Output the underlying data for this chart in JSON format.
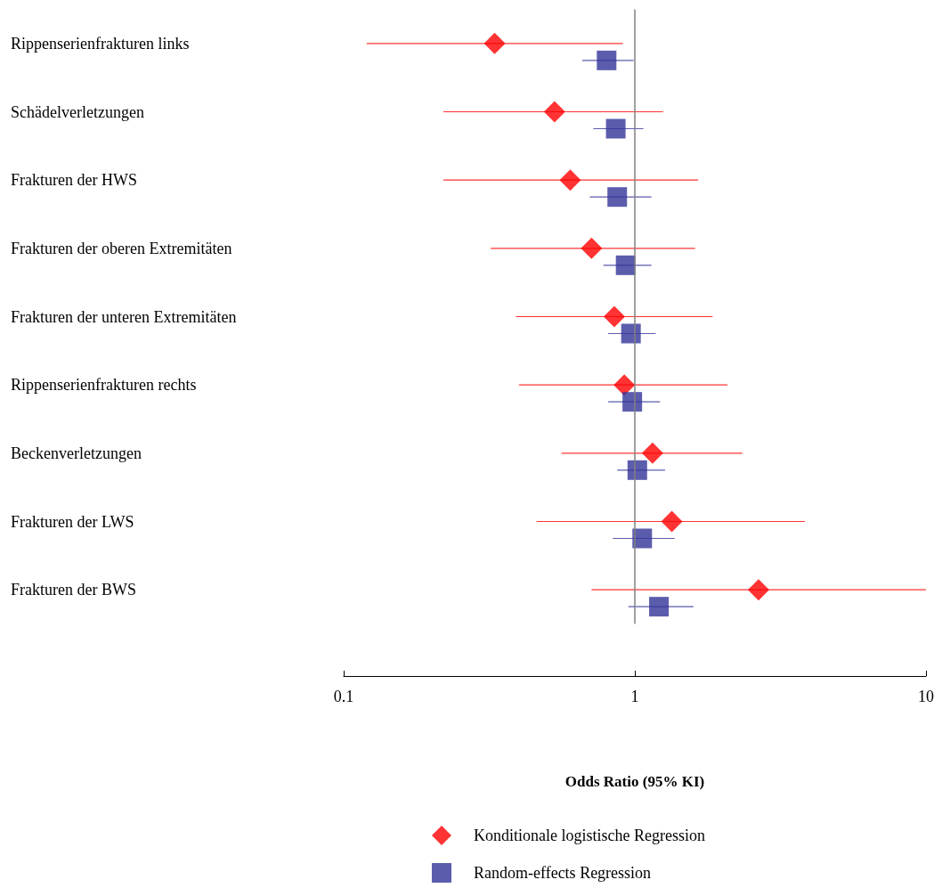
{
  "chart_data": {
    "type": "scatter",
    "orientation": "horizontal",
    "categories": [
      "Rippenserienfrakturen links",
      "Schädelverletzungen",
      "Frakturen der HWS",
      "Frakturen der oberen Extremitäten",
      "Frakturen der unteren Extremitäten",
      "Rippenserienfrakturen rechts",
      "Beckenverletzungen",
      "Frakturen der LWS",
      "Frakturen der BWS"
    ],
    "series": [
      {
        "name": "Konditionale logistische Regression",
        "color": "#ff0000",
        "marker": "diamond",
        "values": [
          0.33,
          0.53,
          0.6,
          0.71,
          0.85,
          0.92,
          1.15,
          1.34,
          2.66
        ],
        "errors": [
          [
            0.12,
            0.91
          ],
          [
            0.22,
            1.25
          ],
          [
            0.22,
            1.65
          ],
          [
            0.32,
            1.61
          ],
          [
            0.39,
            1.85
          ],
          [
            0.4,
            2.08
          ],
          [
            0.56,
            2.34
          ],
          [
            0.46,
            3.84
          ],
          [
            0.71,
            10
          ]
        ]
      },
      {
        "name": "Random-effects Regression",
        "color": "#333399",
        "marker": "square",
        "values": [
          0.8,
          0.86,
          0.87,
          0.93,
          0.97,
          0.98,
          1.02,
          1.06,
          1.21
        ],
        "errors": [
          [
            0.66,
            0.99
          ],
          [
            0.72,
            1.07
          ],
          [
            0.7,
            1.14
          ],
          [
            0.78,
            1.14
          ],
          [
            0.81,
            1.18
          ],
          [
            0.81,
            1.22
          ],
          [
            0.87,
            1.27
          ],
          [
            0.84,
            1.37
          ],
          [
            0.95,
            1.59
          ]
        ]
      }
    ],
    "xlabel": "Odds Ratio (95% KI)",
    "xlim": [
      0.1,
      10
    ],
    "xticks": [
      0.1,
      1,
      10
    ],
    "log": "x",
    "ref_lines": [
      {
        "axis": "x",
        "value": 1,
        "color": "#808080"
      }
    ],
    "grid": false,
    "legend": "bottom"
  }
}
